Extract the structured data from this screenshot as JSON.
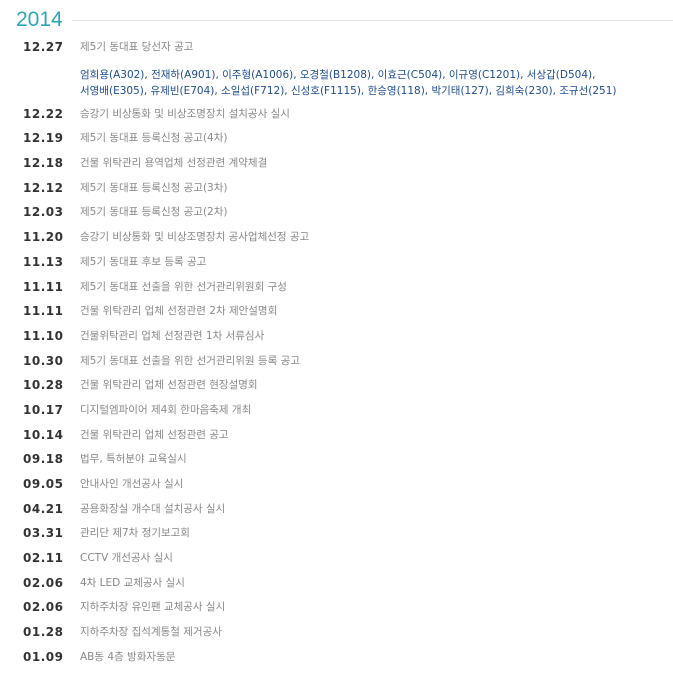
{
  "year": "2014",
  "accent_color": "#2aa7b8",
  "first": {
    "date": "12.27",
    "title": "제5기 동대표 당선자 공고",
    "names_line1": "엄희용(A302), 전재하(A901), 이주형(A1006), 오경철(B1208), 이효근(C504), 이규영(C1201), 서상갑(D504),",
    "names_line2": "서영배(E305), 유제빈(E704), 소일섭(F712), 신성호(F1115), 한승영(118), 박기태(127), 김희숙(230), 조규선(251)"
  },
  "items": [
    {
      "date": "12.22",
      "title": "승강기 비상통화 및 비상조명장치 설치공사 실시"
    },
    {
      "date": "12.19",
      "title": "제5기 동대표 등록신청 공고(4차)"
    },
    {
      "date": "12.18",
      "title": "건물 위탁관리 용역업체 선정관련 계약체결"
    },
    {
      "date": "12.12",
      "title": "제5기 동대표 등록신청 공고(3차)"
    },
    {
      "date": "12.03",
      "title": "제5기 동대표 등록신청 공고(2차)"
    },
    {
      "date": "11.20",
      "title": "승강기 비상통화 및 비상조명장치 공사업체선정 공고"
    },
    {
      "date": "11.13",
      "title": "제5기 동대표 후보 등록 공고"
    },
    {
      "date": "11.11",
      "title": "제5기 동대표 선출을 위한 선거관리위원회 구성"
    },
    {
      "date": "11.11",
      "title": "건물 위탁관리 업체 선정관련 2차 제안설명회"
    },
    {
      "date": "11.10",
      "title": "건물위탁관리 업체 선정관련 1차 서류심사"
    },
    {
      "date": "10.30",
      "title": "제5기 동대표 선출을 위한 선거관리위원 등록 공고"
    },
    {
      "date": "10.28",
      "title": "건물 위탁관리 업체 선정관련 현장설명회"
    },
    {
      "date": "10.17",
      "title": "디지털엠파이어 제4회 한마음축제 개최"
    },
    {
      "date": "10.14",
      "title": "건물 위탁관리 업체 선정관련 공고"
    },
    {
      "date": "09.18",
      "title": "법무, 특허분야 교육실시"
    },
    {
      "date": "09.05",
      "title": "안내사인 개선공사 실시"
    },
    {
      "date": "04.21",
      "title": "공용화장실 개수대 설치공사 실시"
    },
    {
      "date": "03.31",
      "title": "관리단 제7차 정기보고회"
    },
    {
      "date": "02.11",
      "title": "CCTV 개선공사 실시"
    },
    {
      "date": "02.06",
      "title": "4차 LED 교체공사 실시"
    },
    {
      "date": "02.06",
      "title": "지하주차장 유인팬 교체공사 실시"
    },
    {
      "date": "01.28",
      "title": "지하주차장 집석계통철 제거공사"
    },
    {
      "date": "01.09",
      "title": "AB동 4층 방화자동문"
    }
  ]
}
